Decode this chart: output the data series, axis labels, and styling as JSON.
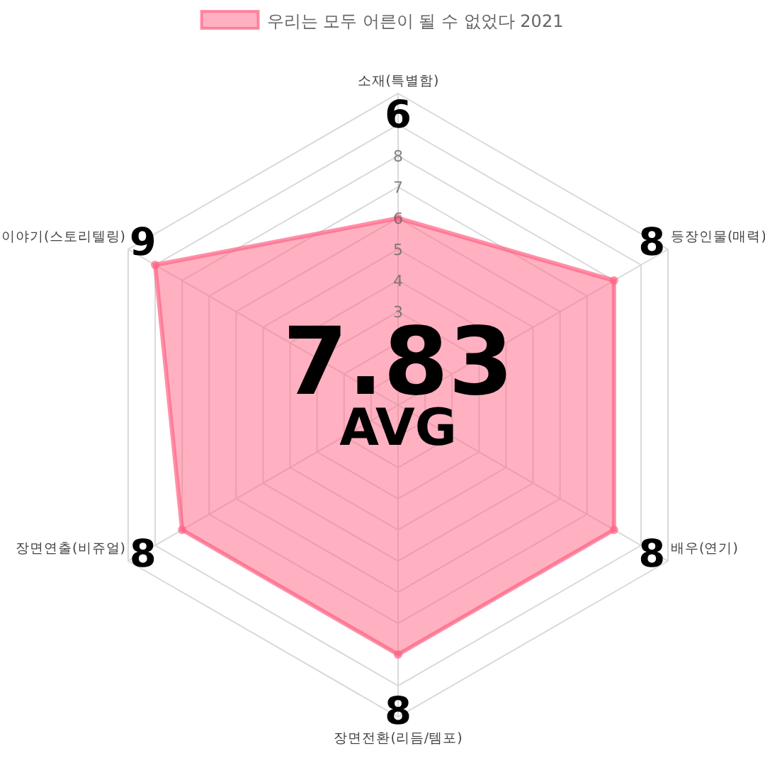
{
  "chart_data": {
    "type": "radar",
    "categories": [
      "소재(특별함)",
      "등장인물(매력)",
      "배우(연기)",
      "장면전환(리듬/템포)",
      "장면연출(비쥬얼)",
      "이야기(스토리텔링)"
    ],
    "series": [
      {
        "name": "우리는 모두 어른이 될 수 없었다 2021",
        "color": "#ff6384",
        "values": [
          6,
          8,
          8,
          8,
          8,
          9
        ]
      }
    ],
    "ylim": [
      0,
      10
    ],
    "yticks": [
      3,
      4,
      5,
      6,
      7,
      8
    ],
    "data_labels": true,
    "legend": "top",
    "marker": "circle",
    "annotations": [
      "7.83",
      "AVG"
    ]
  }
}
